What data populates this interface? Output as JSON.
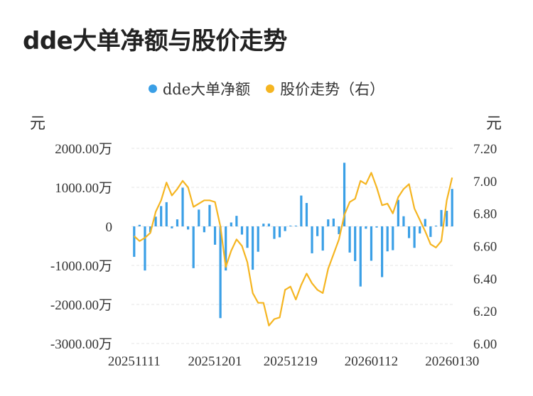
{
  "title": "dde大单净额与股价走势",
  "legend": {
    "dde": "dde大单净额",
    "price": "股价走势（右）"
  },
  "units": {
    "left": "元",
    "right": "元"
  },
  "colors": {
    "bar": "#3a9fe6",
    "line": "#f5b521",
    "grid": "#e5e5e5"
  },
  "chart_data": {
    "type": "bar+line",
    "title": "dde大单净额与股价走势",
    "x_ticks": [
      "20251111",
      "20251201",
      "20251219",
      "20260112",
      "20260130"
    ],
    "y_left_ticks": [
      "2000.00万",
      "1000.00万",
      "0",
      "-1000.00万",
      "-2000.00万",
      "-3000.00万"
    ],
    "y_left_range": [
      -3000,
      2000
    ],
    "y_right_ticks": [
      "7.20",
      "7.00",
      "6.80",
      "6.60",
      "6.40",
      "6.20",
      "6.00"
    ],
    "y_right_range": [
      6.0,
      7.2
    ],
    "series": [
      {
        "name": "dde大单净额",
        "type": "bar",
        "axis": "left",
        "unit": "万元",
        "values": [
          -780,
          40,
          -1130,
          -150,
          250,
          520,
          620,
          -50,
          180,
          990,
          -80,
          -1070,
          430,
          -150,
          550,
          -470,
          -2350,
          -1130,
          100,
          270,
          -210,
          -550,
          -1110,
          -650,
          70,
          70,
          -320,
          -280,
          -120,
          20,
          20,
          790,
          600,
          -690,
          -250,
          -620,
          180,
          200,
          -200,
          1630,
          -670,
          -890,
          -1540,
          -60,
          -880,
          -30,
          -1300,
          -640,
          -610,
          680,
          260,
          -300,
          -550,
          -180,
          190,
          -270,
          20,
          420,
          400,
          960
        ]
      },
      {
        "name": "股价走势（右）",
        "type": "line",
        "axis": "right",
        "unit": "元",
        "values": [
          6.66,
          6.63,
          6.65,
          6.68,
          6.81,
          6.88,
          6.99,
          6.91,
          6.95,
          7.0,
          6.96,
          6.84,
          6.86,
          6.88,
          6.88,
          6.87,
          6.72,
          6.47,
          6.57,
          6.64,
          6.6,
          6.5,
          6.31,
          6.25,
          6.25,
          6.11,
          6.15,
          6.16,
          6.33,
          6.35,
          6.27,
          6.36,
          6.43,
          6.37,
          6.33,
          6.31,
          6.46,
          6.55,
          6.64,
          6.79,
          6.87,
          6.89,
          7.0,
          6.98,
          7.05,
          6.96,
          6.85,
          6.86,
          6.8,
          6.9,
          6.95,
          6.98,
          6.83,
          6.76,
          6.69,
          6.61,
          6.59,
          6.63,
          6.88,
          7.02
        ]
      }
    ]
  }
}
